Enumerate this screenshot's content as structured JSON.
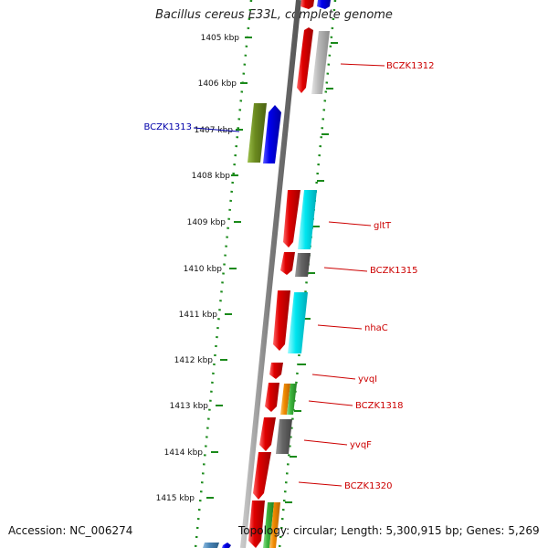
{
  "title": "Bacillus cereus E33L, complete genome",
  "accession": "Accession: NC_006274",
  "topology": "Topology: circular; Length: 5,300,915 bp; Genes: 5,269",
  "ruler": [
    "1405 kbp",
    "1406 kbp",
    "1407 kbp",
    "1408 kbp",
    "1409 kbp",
    "1410 kbp",
    "1411 kbp",
    "1412 kbp",
    "1413 kbp",
    "1414 kbp",
    "1415 kbp"
  ],
  "gene_labels": [
    {
      "text": "BCZK1312",
      "side": "right",
      "color": "#cc0000"
    },
    {
      "text": "BCZK1313",
      "side": "left",
      "color": "#0000aa"
    },
    {
      "text": "gltT",
      "side": "right",
      "color": "#cc0000"
    },
    {
      "text": "BCZK1315",
      "side": "right",
      "color": "#cc0000"
    },
    {
      "text": "nhaC",
      "side": "right",
      "color": "#cc0000"
    },
    {
      "text": "yvqI",
      "side": "right",
      "color": "#cc0000"
    },
    {
      "text": "BCZK1318",
      "side": "right",
      "color": "#cc0000"
    },
    {
      "text": "yvqF",
      "side": "right",
      "color": "#cc0000"
    },
    {
      "text": "BCZK1320",
      "side": "right",
      "color": "#cc0000"
    }
  ],
  "colors": {
    "backbone": "#7a7a7a",
    "dotted_border": "#1a8a1a",
    "tick": "#1a8a1a",
    "cds": "#e00000",
    "cog_blue": "#0000ee",
    "cog_grey": "#b8b8b8",
    "cog_dark_grey": "#666666",
    "cog_cyan": "#00e6f0",
    "cog_olive": "#6b8a1f",
    "cog_orange": "#f08a00",
    "cog_green": "#3cb43c",
    "cog_steel": "#4a86b8"
  }
}
